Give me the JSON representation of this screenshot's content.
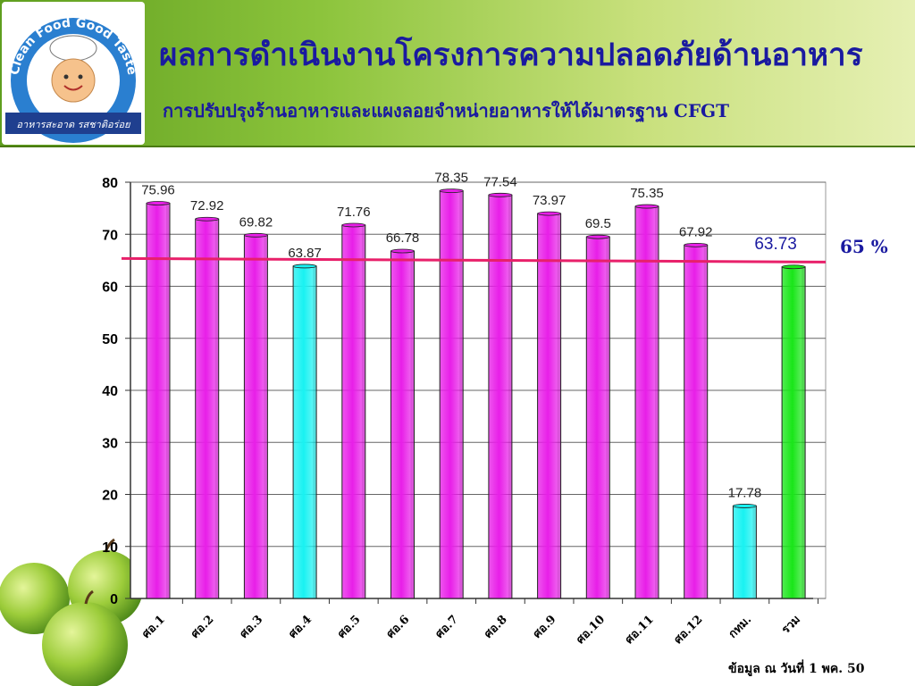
{
  "slide": {
    "title": "ผลการดำเนินงานโครงการความปลอดภัยด้านอาหาร",
    "subtitle": "การปรับปรุงร้านอาหารและแผงลอยจำหน่ายอาหารให้ได้มาตรฐาน CFGT",
    "source_note": "ข้อมูล ณ วันที่ 1 พค. 50"
  },
  "logo": {
    "text_top": "Clean Food Good Taste",
    "text_bottom": "อาหารสะอาด รสชาติอร่อย"
  },
  "colors": {
    "magenta_bar": "#e81ee8",
    "cyan_bar": "#19f2f2",
    "green_bar": "#19e619",
    "target_line": "#e8206a"
  },
  "chart_data": {
    "type": "bar",
    "categories": [
      "ศอ.1",
      "ศอ.2",
      "ศอ.3",
      "ศอ.4",
      "ศอ.5",
      "ศอ.6",
      "ศอ.7",
      "ศอ.8",
      "ศอ.9",
      "ศอ.10",
      "ศอ.11",
      "ศอ.12",
      "กทม.",
      "รวม"
    ],
    "values": [
      75.96,
      72.92,
      69.82,
      63.87,
      71.76,
      66.78,
      78.35,
      77.54,
      73.97,
      69.5,
      75.35,
      67.92,
      17.78,
      63.73
    ],
    "data_labels": [
      "75.96",
      "72.92",
      "69.82",
      "63.87",
      "71.76",
      "66.78",
      "78.35",
      "77.54",
      "73.97",
      "69.5",
      "75.35",
      "67.92",
      "17.78",
      "63.73"
    ],
    "bar_colors": [
      "magenta",
      "magenta",
      "magenta",
      "cyan",
      "magenta",
      "magenta",
      "magenta",
      "magenta",
      "magenta",
      "magenta",
      "magenta",
      "magenta",
      "cyan",
      "green"
    ],
    "ylim": [
      0,
      80
    ],
    "yticks": [
      0,
      10,
      20,
      30,
      40,
      50,
      60,
      70,
      80
    ],
    "ytick_labels": [
      "0",
      "10",
      "20",
      "30",
      "40",
      "50",
      "60",
      "70",
      "80"
    ],
    "target": {
      "value": 65,
      "label": "65 %"
    },
    "grid": true,
    "title": "",
    "xlabel": "",
    "ylabel": ""
  }
}
